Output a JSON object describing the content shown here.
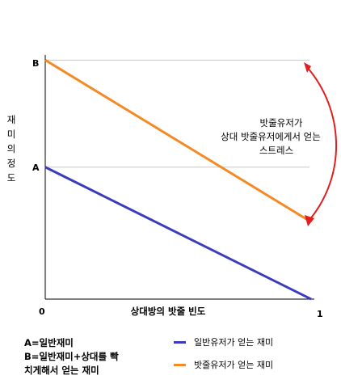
{
  "chart_data": {
    "type": "line",
    "x_axis_label": "상대방의 밧줄 빈도",
    "y_axis_label": "재미의정도",
    "x_ticks": [
      "0",
      "1"
    ],
    "y_ticks": [
      "A",
      "B"
    ],
    "reference_lines": [
      "A",
      "B"
    ],
    "series": [
      {
        "name": "일반유저가 얻는 재미",
        "color": "#3b3bbf",
        "x": [
          0,
          1
        ],
        "y": [
          0.53,
          0.0
        ]
      },
      {
        "name": "밧줄유저가 얻는 재미",
        "color": "#f58a24",
        "x": [
          0,
          1
        ],
        "y": [
          0.96,
          0.31
        ]
      }
    ],
    "annotation": {
      "lines": [
        "밧줄유저가",
        "상대 밧줄유저에게서 얻는",
        "스트레스"
      ],
      "arrow_color": "#e02020"
    },
    "notes": [
      "A=일반재미",
      "B=일반재미+상대를 빡",
      "치게해서 얻는 재미"
    ],
    "xlim": [
      0,
      1
    ],
    "ylim": [
      0,
      1
    ],
    "grid": false,
    "legend_position": "bottom-right"
  },
  "colors": {
    "axis": "#000000",
    "reference_line": "#c8c8c8"
  }
}
